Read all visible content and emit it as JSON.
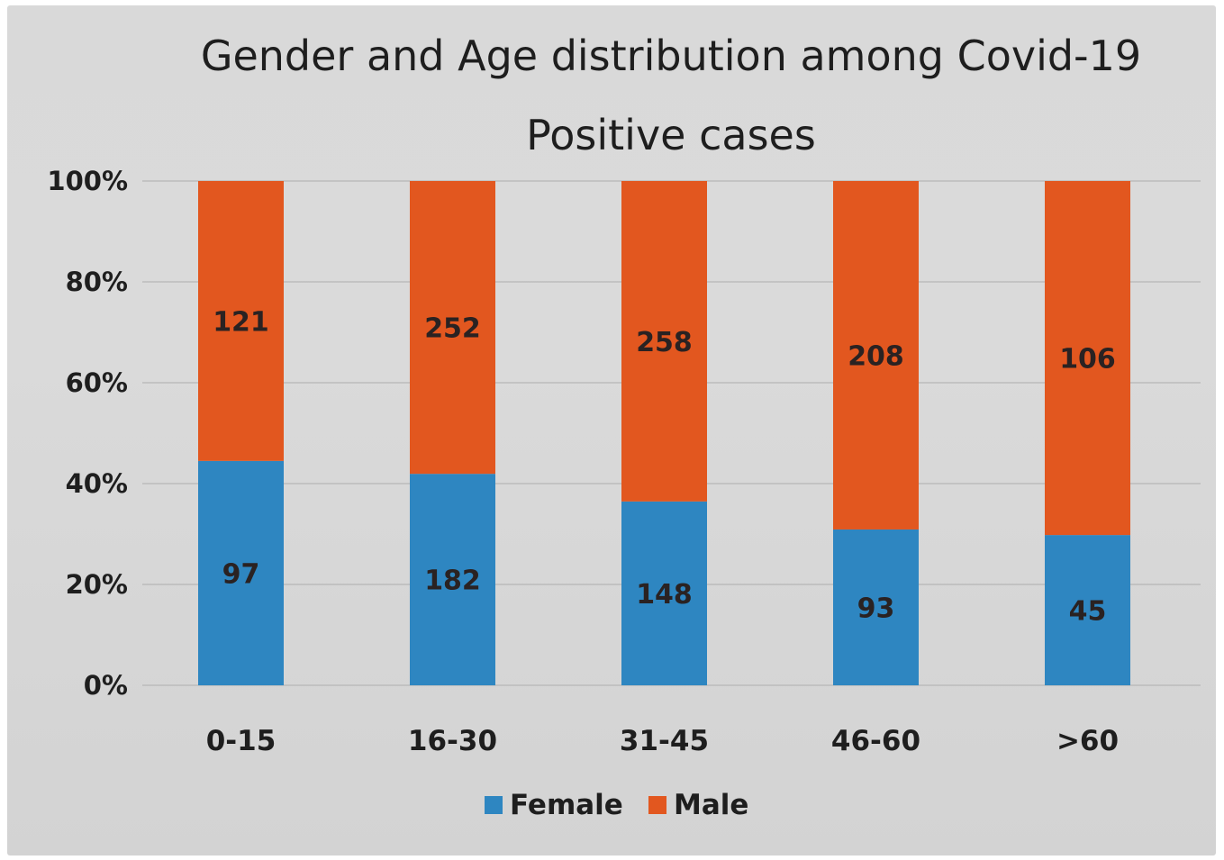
{
  "chart_data": {
    "type": "bar",
    "stacked": "percent",
    "title_lines": [
      "Gender and Age distribution among Covid-19",
      "Positive cases"
    ],
    "categories": [
      "0-15",
      "16-30",
      "31-45",
      "46-60",
      ">60"
    ],
    "series": [
      {
        "name": "Female",
        "values": [
          97,
          182,
          148,
          93,
          45
        ],
        "color": "#2e86c1"
      },
      {
        "name": "Male",
        "values": [
          121,
          252,
          258,
          208,
          106
        ],
        "color": "#e2571f"
      }
    ],
    "yticks": [
      "0%",
      "20%",
      "40%",
      "60%",
      "80%",
      "100%"
    ],
    "ylim": [
      0,
      100
    ],
    "grid": true,
    "legend_position": "bottom"
  }
}
